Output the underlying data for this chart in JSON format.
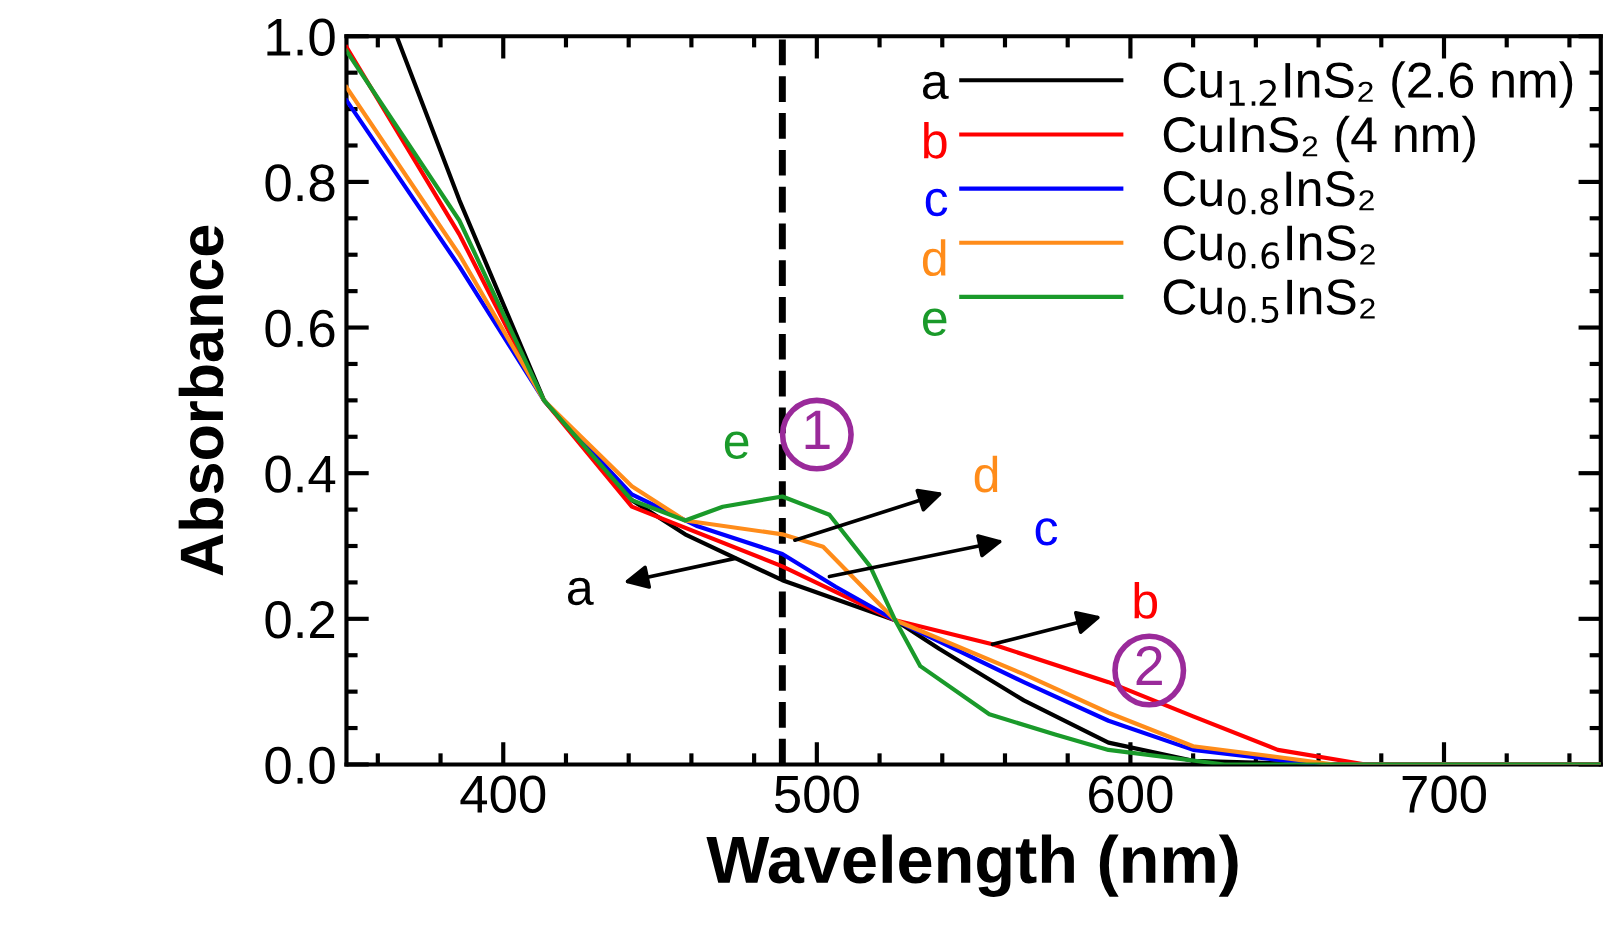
{
  "chart_data": {
    "type": "line",
    "xlabel": "Wavelength (nm)",
    "ylabel": "Absorbance",
    "xlim": [
      350,
      750
    ],
    "xticks": [
      400,
      500,
      600,
      700
    ],
    "ylim": [
      0,
      1.0
    ],
    "yticks": [
      {
        "value": 0,
        "label": "0.0"
      },
      0.2,
      0.4,
      0.6,
      0.8,
      {
        "value": 1.0,
        "label": "1.0"
      }
    ],
    "grid": false,
    "legend": "top right",
    "line_style": "solid",
    "marker": "none",
    "series": [
      {
        "name": "Cu$_{1.2}$InS₂ (2.6 nm)",
        "color": "#000000",
        "x": [
          366,
          386,
          413,
          441,
          458,
          489,
          525,
          539,
          566,
          593,
          620,
          660,
          700,
          750
        ],
        "values": [
          1.0,
          0.775,
          0.5,
          0.363,
          0.316,
          0.253,
          0.198,
          0.159,
          0.088,
          0.03,
          0.005,
          0,
          0,
          0
        ]
      },
      {
        "name": "CuInS₂ (4 nm)",
        "color": "#ff0000",
        "x": [
          350,
          386,
          413,
          441,
          489,
          525,
          556,
          593,
          620,
          647,
          675,
          700,
          750
        ],
        "values": [
          0.985,
          0.728,
          0.5,
          0.354,
          0.272,
          0.198,
          0.165,
          0.113,
          0.066,
          0.02,
          0,
          0,
          0
        ]
      },
      {
        "name": "Cu$_{0.8}$InS₂",
        "color": "#0000ff",
        "x": [
          350,
          386,
          413,
          441,
          462,
          489,
          506,
          525,
          566,
          593,
          620,
          660,
          700,
          750
        ],
        "values": [
          0.912,
          0.684,
          0.5,
          0.371,
          0.327,
          0.289,
          0.244,
          0.198,
          0.113,
          0.06,
          0.02,
          0,
          0,
          0
        ]
      },
      {
        "name": "Cu$_{0.6}$InS₂",
        "color": "#ff8c1a",
        "x": [
          350,
          386,
          413,
          441,
          458,
          489,
          502,
          525,
          566,
          593,
          620,
          665,
          700,
          750
        ],
        "values": [
          0.93,
          0.7,
          0.5,
          0.382,
          0.335,
          0.316,
          0.299,
          0.198,
          0.124,
          0.071,
          0.025,
          0,
          0,
          0
        ]
      },
      {
        "name": "Cu$_{0.5}$InS₂",
        "color": "#1a9a2a",
        "x": [
          350,
          386,
          413,
          441,
          458,
          470,
          489,
          504,
          517,
          525,
          533,
          555,
          576,
          593,
          630,
          700,
          750
        ],
        "values": [
          0.98,
          0.747,
          0.5,
          0.363,
          0.335,
          0.354,
          0.368,
          0.343,
          0.272,
          0.198,
          0.135,
          0.069,
          0.041,
          0.02,
          0,
          0,
          0
        ]
      }
    ],
    "ref_lines": [
      {
        "axis": "x",
        "value": 489,
        "color": "#000000",
        "line_style": "dashed"
      }
    ],
    "annotations": [
      "a",
      "b",
      "c",
      "d",
      "e",
      "1",
      "2",
      {
        "text": "a",
        "x": 474,
        "y": 0.283
      },
      {
        "text": "b",
        "x": 556,
        "y": 0.165
      },
      {
        "text": "c",
        "x": 504,
        "y": 0.258
      },
      {
        "text": "d",
        "x": 493,
        "y": 0.308
      },
      {
        "text": "e",
        "x": 470,
        "y": 0.354
      }
    ]
  }
}
